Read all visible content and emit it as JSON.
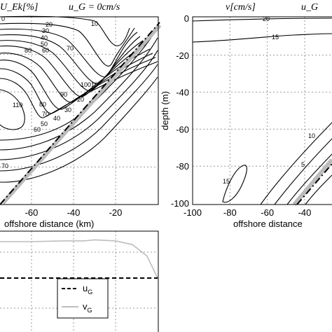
{
  "chart_data": [
    {
      "type": "contour",
      "title_left": "U_Ek[%]",
      "title_right": "u_G = 0cm/s",
      "xlabel": "offshore distance (km)",
      "ylabel": "",
      "x_ticks": [
        -60,
        -40,
        -20
      ],
      "xlim": [
        -75,
        0
      ],
      "ylim": [
        -100,
        0
      ],
      "contour_levels": [
        10,
        20,
        30,
        40,
        50,
        60,
        70,
        80,
        90,
        100,
        110
      ],
      "grid": true,
      "bottom_line": "dash-dot"
    },
    {
      "type": "contour",
      "title_left": "v[cm/s]",
      "title_right": "u_G",
      "xlabel": "offshore distance",
      "ylabel": "depth (m)",
      "x_ticks": [
        -100,
        -80,
        -60,
        -40
      ],
      "y_ticks": [
        0,
        -20,
        -40,
        -60,
        -80,
        -100
      ],
      "xlim": [
        -100,
        -25
      ],
      "ylim": [
        -100,
        0
      ],
      "contour_levels": [
        20,
        15,
        10,
        5,
        15
      ],
      "grid": true,
      "bottom_line": "dash-dot"
    },
    {
      "type": "line",
      "xlim": [
        -75,
        0
      ],
      "grid": true,
      "series": [
        {
          "name": "u_G",
          "style": "dashed",
          "color": "#000000",
          "points": [
            [
              -75,
              0
            ],
            [
              0,
              0
            ]
          ]
        },
        {
          "name": "v_G",
          "style": "solid",
          "color": "#bdbdbd",
          "points": [
            [
              -75,
              1.0
            ],
            [
              -60,
              1.0
            ],
            [
              -45,
              1.02
            ],
            [
              -35,
              1.02
            ],
            [
              -30,
              1.05
            ],
            [
              -20,
              1.02
            ],
            [
              -12,
              0.92
            ],
            [
              -5,
              0.6
            ],
            [
              0,
              0.0
            ]
          ]
        }
      ],
      "legend_location": "lower-right"
    }
  ]
}
